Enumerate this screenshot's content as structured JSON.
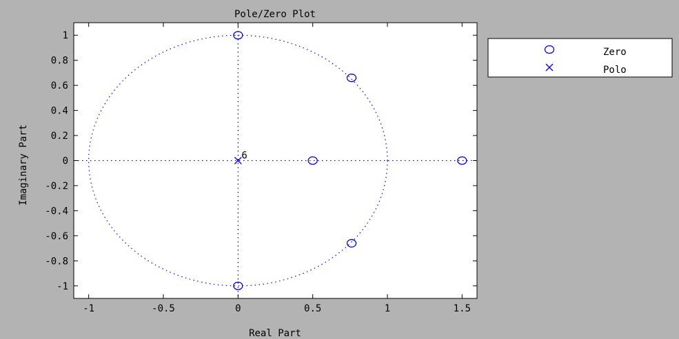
{
  "chart_data": {
    "type": "scatter",
    "title": "Pole/Zero Plot",
    "xlabel": "Real Part",
    "ylabel": "Imaginary Part",
    "xlim": [
      -1.1,
      1.6
    ],
    "ylim": [
      -1.1,
      1.1
    ],
    "xticks": [
      -1,
      -0.5,
      0,
      0.5,
      1,
      1.5
    ],
    "xtick_labels": [
      "-1",
      "-0.5",
      "0",
      "0.5",
      "1",
      "1.5"
    ],
    "yticks": [
      1,
      0.8,
      0.6,
      0.4,
      0.2,
      0,
      -0.2,
      -0.4,
      -0.6,
      -0.8,
      -1
    ],
    "ytick_labels": [
      "1",
      "0.8",
      "0.6",
      "0.4",
      "0.2",
      "0",
      "-0.2",
      "-0.4",
      "-0.6",
      "-0.8",
      "-1"
    ],
    "grid": false,
    "unit_circle": true,
    "legend_position": "outside-right-top",
    "series": [
      {
        "name": "Zero",
        "marker": "o",
        "color": "#0000ff",
        "points": [
          {
            "x": 0,
            "y": 1
          },
          {
            "x": 0.76,
            "y": 0.66
          },
          {
            "x": 0.5,
            "y": 0
          },
          {
            "x": 1.5,
            "y": 0
          },
          {
            "x": 0.76,
            "y": -0.66
          },
          {
            "x": 0,
            "y": -1
          }
        ]
      },
      {
        "name": "Polo",
        "marker": "x",
        "color": "#0000ff",
        "points": [
          {
            "x": 0,
            "y": 0
          }
        ]
      }
    ],
    "annotations": [
      {
        "text": "6",
        "x": 0,
        "y": 0
      }
    ]
  }
}
